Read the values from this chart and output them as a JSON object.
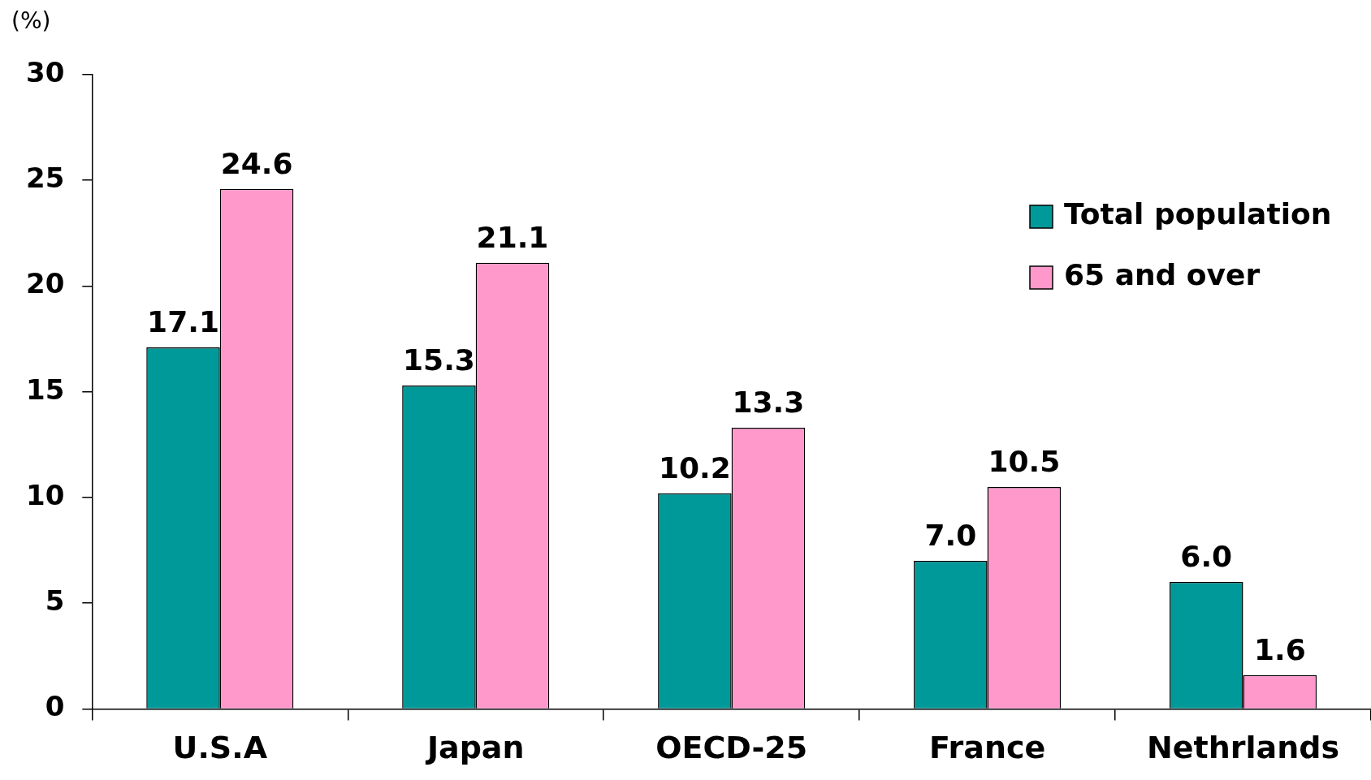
{
  "chart_data": {
    "type": "bar",
    "ylabel": "(%)",
    "categories": [
      "U.S.A",
      "Japan",
      "OECD-25",
      "France",
      "Nethrlands"
    ],
    "series": [
      {
        "name": "Total population",
        "color": "#009999",
        "values": [
          17.1,
          15.3,
          10.2,
          7.0,
          6.0
        ],
        "value_labels": [
          "17.1",
          "15.3",
          "10.2",
          "7.0",
          "6.0"
        ]
      },
      {
        "name": "65 and over",
        "color": "#ff99cc",
        "values": [
          24.6,
          21.1,
          13.3,
          10.5,
          1.6
        ],
        "value_labels": [
          "24.6",
          "21.1",
          "13.3",
          "10.5",
          "1.6"
        ]
      }
    ],
    "ylim": [
      0,
      30
    ],
    "yticks": [
      0,
      5,
      10,
      15,
      20,
      25,
      30
    ],
    "grid": false,
    "legend": "top right"
  }
}
